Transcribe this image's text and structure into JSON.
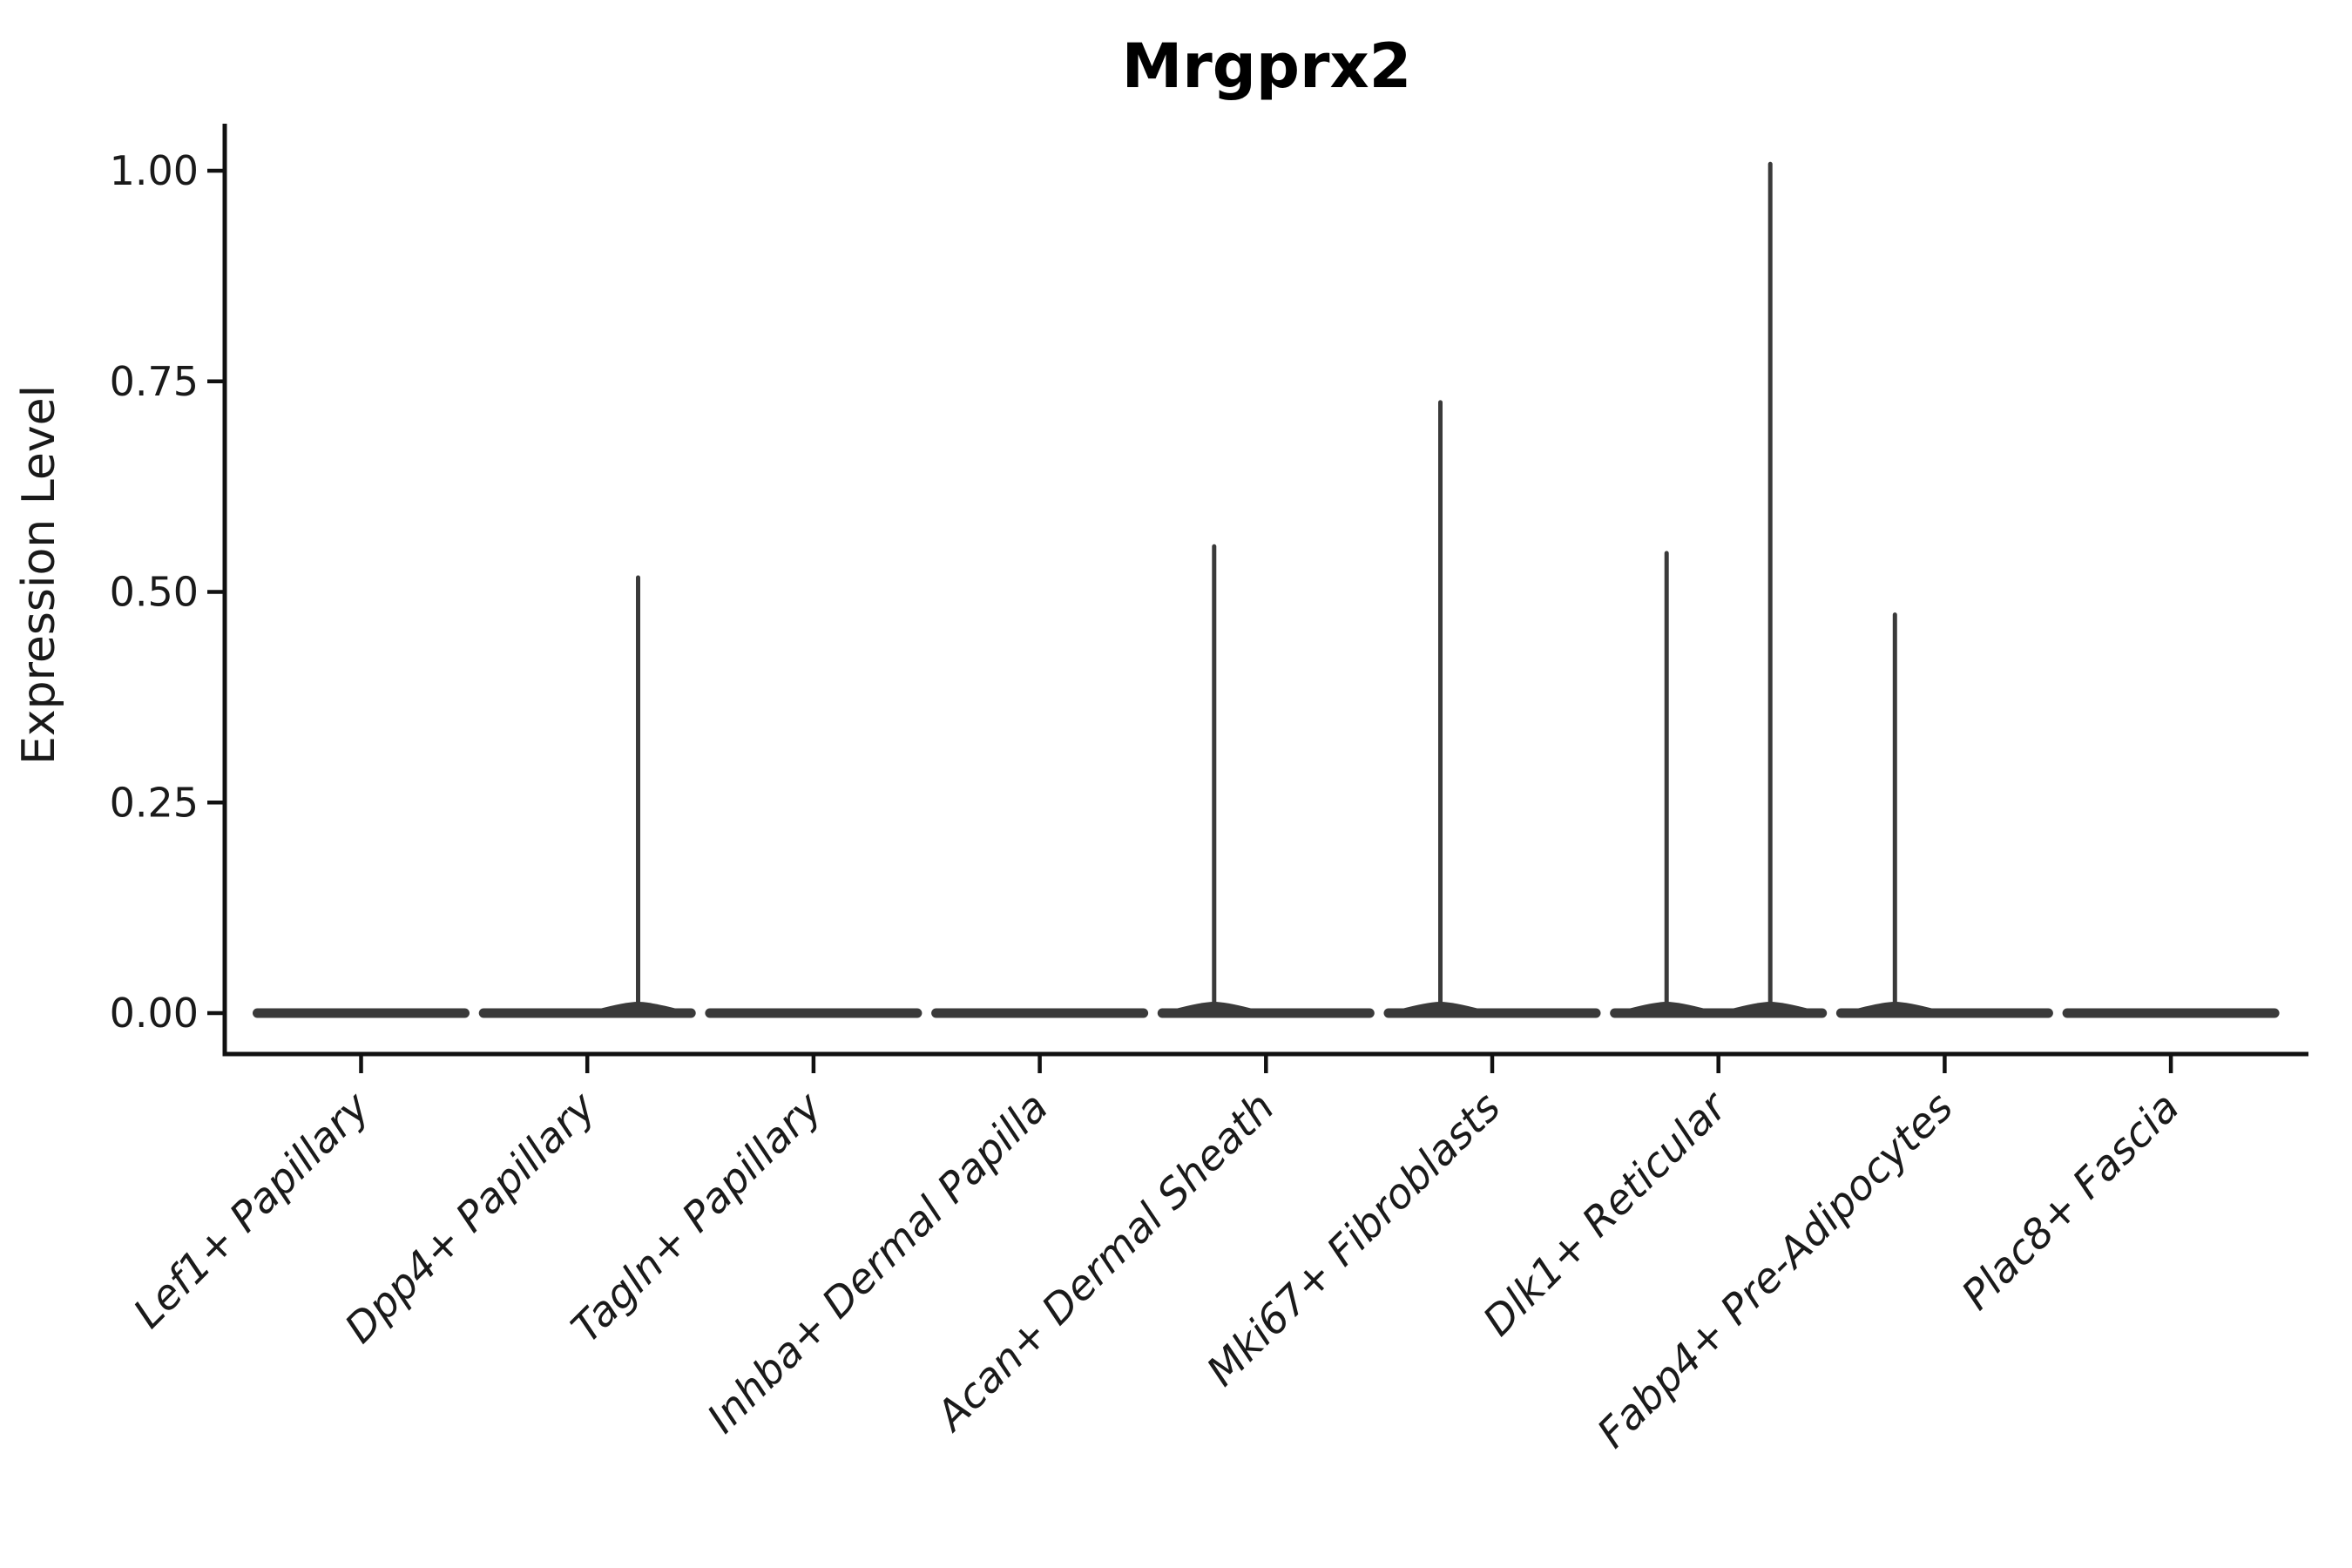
{
  "title": "Mrgprx2",
  "y_axis": {
    "label": "Expression Level"
  },
  "style": {
    "background": "#ffffff",
    "spine_color": "#111111",
    "violin_color": "#3a3a3a",
    "text_color": "#1a1a1a",
    "title_color": "#000000"
  },
  "chart_data": {
    "type": "violin",
    "title": "Mrgprx2",
    "xlabel": "",
    "ylabel": "Expression Level",
    "ylim": [
      0,
      1.056
    ],
    "grid": false,
    "legend": "none",
    "y_ticks": [
      {
        "value": 0.0,
        "label": "0.00"
      },
      {
        "value": 0.25,
        "label": "0.25"
      },
      {
        "value": 0.5,
        "label": "0.50"
      },
      {
        "value": 0.75,
        "label": "0.75"
      },
      {
        "value": 1.0,
        "label": "1.00"
      }
    ],
    "categories": [
      "Lef1+ Papillary",
      "Dpp4+ Papillary",
      "Tagln+ Papillary",
      "Inhba+ Dermal Papilla",
      "Acan+ Dermal Sheath",
      "Mki67+ Fibroblasts",
      "Dlk1+ Reticular",
      "Fabp4+ Pre-Adipocytes",
      "Plac8+ Fascia"
    ],
    "violins": [
      {
        "category": "Lef1+ Papillary",
        "base_value": 0,
        "spikes": []
      },
      {
        "category": "Dpp4+ Papillary",
        "base_value": 0,
        "spikes": [
          {
            "value": 0.517,
            "x_offset_frac": 0.49
          }
        ]
      },
      {
        "category": "Tagln+ Papillary",
        "base_value": 0,
        "spikes": []
      },
      {
        "category": "Inhba+ Dermal Papilla",
        "base_value": 0,
        "spikes": []
      },
      {
        "category": "Acan+ Dermal Sheath",
        "base_value": 0,
        "spikes": [
          {
            "value": 0.554,
            "x_offset_frac": -0.5
          }
        ]
      },
      {
        "category": "Mki67+ Fibroblasts",
        "base_value": 0,
        "spikes": [
          {
            "value": 0.725,
            "x_offset_frac": -0.5
          }
        ]
      },
      {
        "category": "Dlk1+ Reticular",
        "base_value": 0,
        "spikes": [
          {
            "value": 0.546,
            "x_offset_frac": -0.5
          },
          {
            "value": 1.008,
            "x_offset_frac": 0.5
          }
        ]
      },
      {
        "category": "Fabp4+ Pre-Adipocytes",
        "base_value": 0,
        "spikes": [
          {
            "value": 0.473,
            "x_offset_frac": -0.48
          }
        ]
      },
      {
        "category": "Plac8+ Fascia",
        "base_value": 0,
        "spikes": []
      }
    ]
  }
}
